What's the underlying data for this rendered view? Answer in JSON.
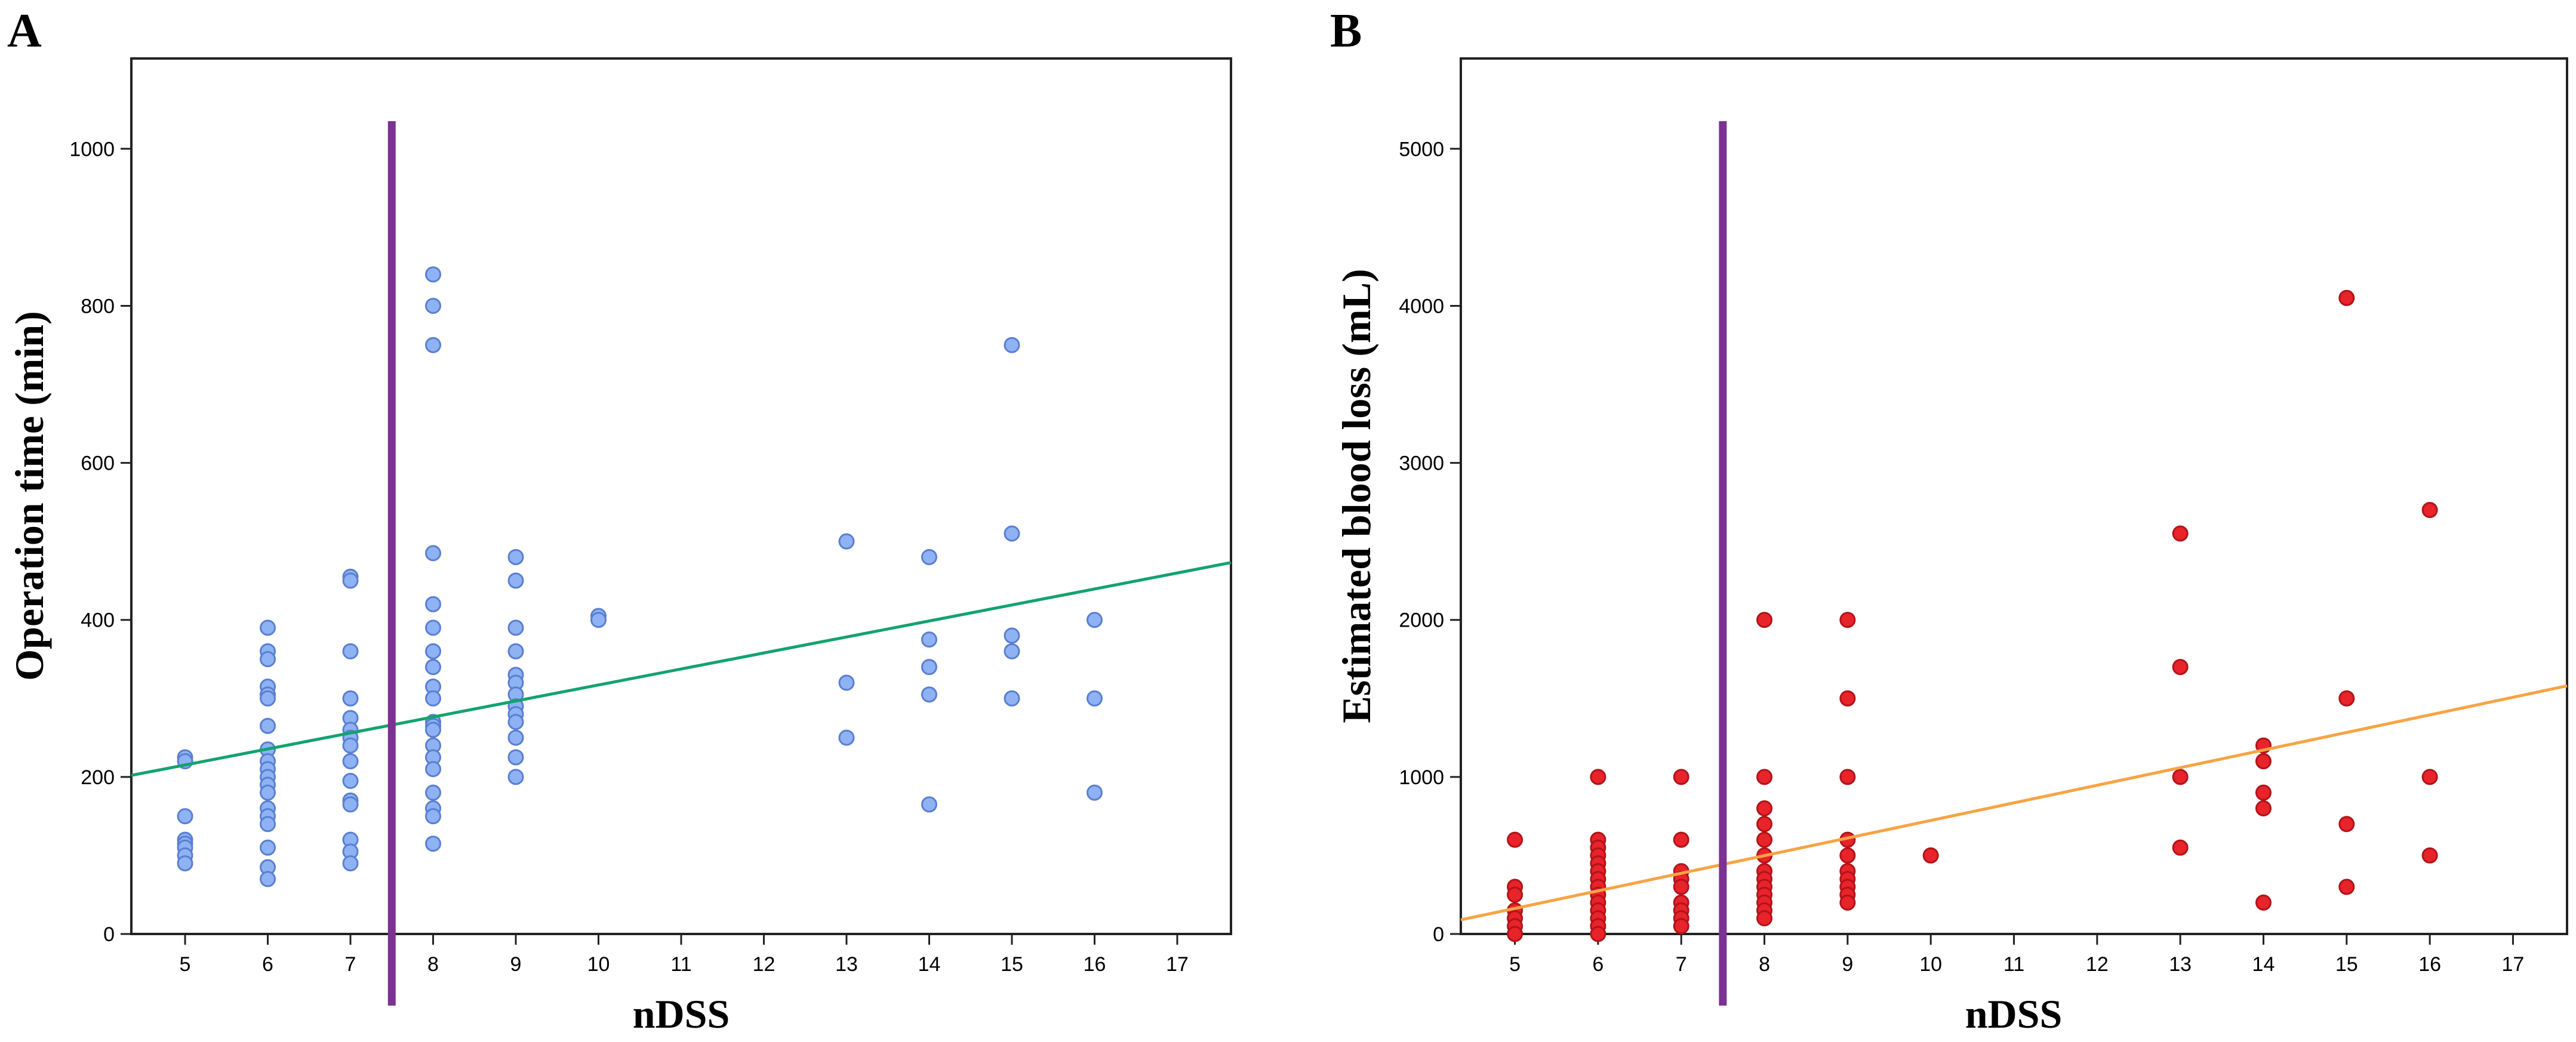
{
  "chart_data": [
    {
      "panel": "A",
      "type": "scatter",
      "title": "",
      "xlabel": "nDSS",
      "ylabel": "Operation time (min)",
      "xlim": [
        4.35,
        17.65
      ],
      "ylim": [
        0,
        1115
      ],
      "xticks": [
        5,
        6,
        7,
        8,
        9,
        10,
        11,
        12,
        13,
        14,
        15,
        16,
        17
      ],
      "yticks": [
        0,
        200,
        400,
        600,
        800,
        1000
      ],
      "grid": false,
      "legend": "none",
      "point_color": "#8fb2f5",
      "point_edge": "#5a7fd0",
      "fit_line": {
        "color": "#12a36f",
        "x": [
          4.35,
          17.65
        ],
        "y": [
          202,
          473
        ]
      },
      "cutoff_line": {
        "x": 7.5,
        "color": "#7b3294"
      },
      "points": [
        [
          5,
          225
        ],
        [
          5,
          220
        ],
        [
          5,
          150
        ],
        [
          5,
          120
        ],
        [
          5,
          115
        ],
        [
          5,
          110
        ],
        [
          5,
          100
        ],
        [
          5,
          90
        ],
        [
          6,
          390
        ],
        [
          6,
          360
        ],
        [
          6,
          350
        ],
        [
          6,
          315
        ],
        [
          6,
          305
        ],
        [
          6,
          300
        ],
        [
          6,
          265
        ],
        [
          6,
          235
        ],
        [
          6,
          220
        ],
        [
          6,
          210
        ],
        [
          6,
          200
        ],
        [
          6,
          190
        ],
        [
          6,
          180
        ],
        [
          6,
          160
        ],
        [
          6,
          150
        ],
        [
          6,
          140
        ],
        [
          6,
          110
        ],
        [
          6,
          85
        ],
        [
          6,
          70
        ],
        [
          7,
          455
        ],
        [
          7,
          450
        ],
        [
          7,
          360
        ],
        [
          7,
          300
        ],
        [
          7,
          275
        ],
        [
          7,
          260
        ],
        [
          7,
          250
        ],
        [
          7,
          240
        ],
        [
          7,
          220
        ],
        [
          7,
          195
        ],
        [
          7,
          170
        ],
        [
          7,
          165
        ],
        [
          7,
          120
        ],
        [
          7,
          105
        ],
        [
          7,
          90
        ],
        [
          8,
          840
        ],
        [
          8,
          800
        ],
        [
          8,
          750
        ],
        [
          8,
          485
        ],
        [
          8,
          420
        ],
        [
          8,
          390
        ],
        [
          8,
          360
        ],
        [
          8,
          340
        ],
        [
          8,
          315
        ],
        [
          8,
          300
        ],
        [
          8,
          270
        ],
        [
          8,
          265
        ],
        [
          8,
          260
        ],
        [
          8,
          240
        ],
        [
          8,
          225
        ],
        [
          8,
          210
        ],
        [
          8,
          180
        ],
        [
          8,
          160
        ],
        [
          8,
          150
        ],
        [
          8,
          115
        ],
        [
          9,
          480
        ],
        [
          9,
          450
        ],
        [
          9,
          390
        ],
        [
          9,
          360
        ],
        [
          9,
          330
        ],
        [
          9,
          320
        ],
        [
          9,
          305
        ],
        [
          9,
          290
        ],
        [
          9,
          280
        ],
        [
          9,
          270
        ],
        [
          9,
          250
        ],
        [
          9,
          225
        ],
        [
          9,
          200
        ],
        [
          10,
          405
        ],
        [
          10,
          400
        ],
        [
          13,
          500
        ],
        [
          13,
          320
        ],
        [
          13,
          250
        ],
        [
          14,
          480
        ],
        [
          14,
          375
        ],
        [
          14,
          340
        ],
        [
          14,
          305
        ],
        [
          14,
          165
        ],
        [
          15,
          750
        ],
        [
          15,
          510
        ],
        [
          15,
          380
        ],
        [
          15,
          360
        ],
        [
          15,
          300
        ],
        [
          16,
          400
        ],
        [
          16,
          300
        ],
        [
          16,
          180
        ]
      ]
    },
    {
      "panel": "B",
      "type": "scatter",
      "title": "",
      "xlabel": "nDSS",
      "ylabel": "Estimated blood loss (mL)",
      "xlim": [
        4.35,
        17.65
      ],
      "ylim": [
        0,
        5575
      ],
      "xticks": [
        5,
        6,
        7,
        8,
        9,
        10,
        11,
        12,
        13,
        14,
        15,
        16,
        17
      ],
      "yticks": [
        0,
        1000,
        2000,
        3000,
        4000,
        5000
      ],
      "grid": false,
      "legend": "none",
      "point_color": "#e8232a",
      "point_edge": "#b0141a",
      "fit_line": {
        "color": "#f7a444",
        "x": [
          4.35,
          17.65
        ],
        "y": [
          90,
          1580
        ]
      },
      "cutoff_line": {
        "x": 7.5,
        "color": "#7b3294"
      },
      "points": [
        [
          5,
          600
        ],
        [
          5,
          300
        ],
        [
          5,
          250
        ],
        [
          5,
          150
        ],
        [
          5,
          100
        ],
        [
          5,
          50
        ],
        [
          5,
          0
        ],
        [
          6,
          1000
        ],
        [
          6,
          600
        ],
        [
          6,
          550
        ],
        [
          6,
          500
        ],
        [
          6,
          450
        ],
        [
          6,
          400
        ],
        [
          6,
          350
        ],
        [
          6,
          300
        ],
        [
          6,
          250
        ],
        [
          6,
          200
        ],
        [
          6,
          150
        ],
        [
          6,
          100
        ],
        [
          6,
          50
        ],
        [
          6,
          0
        ],
        [
          7,
          1000
        ],
        [
          7,
          600
        ],
        [
          7,
          400
        ],
        [
          7,
          350
        ],
        [
          7,
          300
        ],
        [
          7,
          200
        ],
        [
          7,
          150
        ],
        [
          7,
          100
        ],
        [
          7,
          50
        ],
        [
          8,
          2000
        ],
        [
          8,
          1000
        ],
        [
          8,
          800
        ],
        [
          8,
          700
        ],
        [
          8,
          600
        ],
        [
          8,
          500
        ],
        [
          8,
          400
        ],
        [
          8,
          350
        ],
        [
          8,
          300
        ],
        [
          8,
          250
        ],
        [
          8,
          200
        ],
        [
          8,
          150
        ],
        [
          8,
          100
        ],
        [
          9,
          2000
        ],
        [
          9,
          1500
        ],
        [
          9,
          1000
        ],
        [
          9,
          600
        ],
        [
          9,
          500
        ],
        [
          9,
          400
        ],
        [
          9,
          350
        ],
        [
          9,
          300
        ],
        [
          9,
          250
        ],
        [
          9,
          200
        ],
        [
          10,
          500
        ],
        [
          13,
          2550
        ],
        [
          13,
          1700
        ],
        [
          13,
          1000
        ],
        [
          13,
          550
        ],
        [
          14,
          1200
        ],
        [
          14,
          1100
        ],
        [
          14,
          900
        ],
        [
          14,
          800
        ],
        [
          14,
          200
        ],
        [
          15,
          4050
        ],
        [
          15,
          1500
        ],
        [
          15,
          700
        ],
        [
          15,
          300
        ],
        [
          16,
          2700
        ],
        [
          16,
          1000
        ],
        [
          16,
          500
        ]
      ]
    }
  ]
}
